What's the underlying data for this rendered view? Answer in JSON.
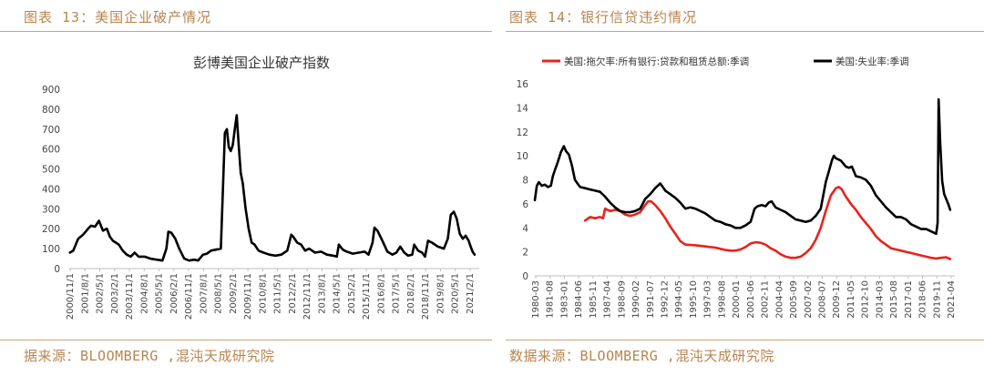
{
  "left": {
    "figure_title": "图表 13：美国企业破产情况",
    "source": "据来源：BLOOMBERG ,混沌天成研究院"
  },
  "right": {
    "figure_title": "图表 14：银行信贷违约情况",
    "source": "数据来源：BLOOMBERG ,混沌天成研究院"
  },
  "chart_data": [
    {
      "type": "line",
      "title": "彭博美国企业破产指数",
      "xlabel": "",
      "ylabel": "",
      "ylim": [
        0,
        900
      ],
      "yticks": [
        "900",
        "800",
        "700",
        "600",
        "500",
        "400",
        "300",
        "200",
        "100",
        "0"
      ],
      "x_tick_labels": [
        "2000/11/1",
        "2001/8/1",
        "2002/5/1",
        "2003/2/1",
        "2003/11/1",
        "2004/8/1",
        "2005/5/1",
        "2006/2/1",
        "2006/11/1",
        "2007/8/1",
        "2008/5/1",
        "2009/2/1",
        "2009/11/1",
        "2010/8/1",
        "2011/5/1",
        "2012/2/1",
        "2012/11/1",
        "2013/8/1",
        "2014/5/1",
        "2015/2/1",
        "2015/11/1",
        "2016/8/1",
        "2017/5/1",
        "2018/2/1",
        "2018/11/1",
        "2019/8/1",
        "2020/5/1",
        "2021/2/1"
      ],
      "grid": false,
      "colors": {
        "line": "#000000"
      },
      "series": [
        {
          "x": [
            2000.83,
            2001.0,
            2001.25,
            2001.5,
            2001.75,
            2001.9,
            2002.1,
            2002.3,
            2002.5,
            2002.7,
            2002.85,
            2003.0,
            2003.15,
            2003.3,
            2003.5,
            2003.7,
            2003.9,
            2004.1,
            2004.3,
            2004.6,
            2004.9,
            2005.2,
            2005.5,
            2005.7,
            2005.8,
            2005.95,
            2006.15,
            2006.35,
            2006.6,
            2006.85,
            2007.1,
            2007.3,
            2007.55,
            2007.75,
            2007.95,
            2008.2,
            2008.45,
            2008.65,
            2008.75,
            2008.85,
            2008.95,
            2009.05,
            2009.15,
            2009.25,
            2009.35,
            2009.45,
            2009.55,
            2009.7,
            2009.85,
            2010.0,
            2010.15,
            2010.35,
            2010.6,
            2010.9,
            2011.2,
            2011.5,
            2011.8,
            2012.0,
            2012.1,
            2012.3,
            2012.5,
            2012.7,
            2012.9,
            2013.2,
            2013.5,
            2013.8,
            2014.1,
            2014.3,
            2014.4,
            2014.6,
            2014.8,
            2015.1,
            2015.4,
            2015.7,
            2015.9,
            2016.1,
            2016.2,
            2016.35,
            2016.6,
            2016.85,
            2017.1,
            2017.3,
            2017.5,
            2017.7,
            2017.9,
            2018.1,
            2018.2,
            2018.4,
            2018.6,
            2018.75,
            2018.9,
            2019.1,
            2019.4,
            2019.7,
            2019.9,
            2020.05,
            2020.2,
            2020.35,
            2020.5,
            2020.65,
            2020.8,
            2020.95,
            2021.05,
            2021.15,
            2021.25
          ],
          "y": [
            80,
            90,
            150,
            170,
            200,
            215,
            210,
            240,
            190,
            200,
            160,
            140,
            130,
            120,
            90,
            70,
            60,
            80,
            60,
            60,
            50,
            45,
            40,
            100,
            185,
            180,
            150,
            100,
            50,
            40,
            45,
            40,
            70,
            75,
            90,
            95,
            100,
            680,
            700,
            610,
            590,
            620,
            700,
            770,
            620,
            480,
            430,
            300,
            200,
            130,
            120,
            90,
            80,
            70,
            65,
            70,
            90,
            170,
            160,
            130,
            120,
            90,
            100,
            80,
            85,
            70,
            65,
            60,
            120,
            95,
            85,
            75,
            80,
            85,
            70,
            130,
            205,
            190,
            140,
            85,
            70,
            80,
            110,
            80,
            65,
            70,
            120,
            90,
            80,
            60,
            140,
            130,
            110,
            100,
            150,
            270,
            285,
            250,
            175,
            150,
            165,
            140,
            110,
            85,
            70
          ]
        }
      ]
    },
    {
      "type": "line",
      "title": "",
      "xlabel": "",
      "ylabel": "",
      "ylim": [
        0,
        16
      ],
      "yticks": [
        "16",
        "14",
        "12",
        "10",
        "8",
        "6",
        "4",
        "2",
        "0"
      ],
      "x_tick_labels": [
        "1980-03",
        "1981-08",
        "1983-01",
        "1984-06",
        "1985-11",
        "1987-04",
        "1988-09",
        "1990-02",
        "1991-07",
        "1992-12",
        "1994-05",
        "1995-10",
        "1997-03",
        "1998-08",
        "2000-01",
        "2001-06",
        "2002-11",
        "2004-04",
        "2005-09",
        "2007-02",
        "2008-07",
        "2009-12",
        "2011-05",
        "2012-10",
        "2014-03",
        "2015-08",
        "2017-01",
        "2018-06",
        "2019-11",
        "2021-04"
      ],
      "grid": false,
      "legend_position": "top",
      "series": [
        {
          "name": "美国:拖欠率:所有银行:贷款和租赁总额:季调",
          "color": "#e8231c",
          "x": [
            1985.0,
            1985.5,
            1986.0,
            1986.5,
            1986.8,
            1987.0,
            1987.5,
            1988.0,
            1988.5,
            1989.0,
            1989.5,
            1990.0,
            1990.5,
            1991.0,
            1991.3,
            1991.6,
            1992.0,
            1992.5,
            1993.0,
            1993.5,
            1994.0,
            1994.5,
            1995.0,
            1996.0,
            1997.0,
            1998.0,
            1998.5,
            1999.0,
            1999.5,
            2000.0,
            2000.5,
            2001.0,
            2001.5,
            2002.0,
            2002.5,
            2003.0,
            2003.5,
            2004.0,
            2004.5,
            2005.0,
            2005.5,
            2006.0,
            2006.5,
            2007.0,
            2007.5,
            2008.0,
            2008.5,
            2009.0,
            2009.5,
            2010.0,
            2010.3,
            2010.6,
            2011.0,
            2011.5,
            2012.0,
            2012.5,
            2013.0,
            2013.5,
            2014.0,
            2014.5,
            2015.0,
            2015.5,
            2016.0,
            2016.5,
            2017.0,
            2017.5,
            2018.0,
            2018.5,
            2019.0,
            2019.5,
            2020.0,
            2020.5,
            2021.0,
            2021.4
          ],
          "y": [
            4.6,
            4.9,
            4.8,
            4.9,
            4.8,
            5.6,
            5.4,
            5.5,
            5.4,
            5.1,
            5.0,
            5.1,
            5.3,
            5.9,
            6.2,
            6.2,
            5.9,
            5.4,
            4.8,
            4.1,
            3.5,
            2.9,
            2.6,
            2.55,
            2.45,
            2.35,
            2.25,
            2.15,
            2.1,
            2.1,
            2.2,
            2.4,
            2.7,
            2.8,
            2.75,
            2.6,
            2.3,
            2.1,
            1.8,
            1.6,
            1.5,
            1.5,
            1.6,
            1.9,
            2.3,
            3.0,
            4.0,
            5.4,
            6.7,
            7.3,
            7.4,
            7.2,
            6.6,
            6.0,
            5.5,
            4.9,
            4.4,
            3.9,
            3.3,
            2.9,
            2.6,
            2.3,
            2.2,
            2.1,
            2.0,
            1.9,
            1.8,
            1.7,
            1.6,
            1.5,
            1.45,
            1.5,
            1.55,
            1.4
          ]
        },
        {
          "name": "美国:失业率:季调",
          "color": "#000000",
          "x": [
            1980.0,
            1980.2,
            1980.4,
            1980.7,
            1981.0,
            1981.3,
            1981.6,
            1981.8,
            1982.0,
            1982.3,
            1982.6,
            1982.9,
            1983.1,
            1983.4,
            1983.7,
            1984.0,
            1984.5,
            1985.0,
            1985.5,
            1986.0,
            1986.5,
            1987.0,
            1987.5,
            1988.0,
            1988.5,
            1989.0,
            1989.5,
            1990.0,
            1990.5,
            1991.0,
            1991.5,
            1992.0,
            1992.5,
            1993.0,
            1993.5,
            1994.0,
            1994.5,
            1995.0,
            1995.5,
            1996.0,
            1996.5,
            1997.0,
            1997.5,
            1998.0,
            1998.5,
            1999.0,
            1999.5,
            2000.0,
            2000.5,
            2001.0,
            2001.5,
            2001.9,
            2002.2,
            2002.6,
            2003.0,
            2003.3,
            2003.6,
            2004.0,
            2004.5,
            2005.0,
            2005.5,
            2006.0,
            2006.5,
            2007.0,
            2007.5,
            2008.0,
            2008.5,
            2009.0,
            2009.3,
            2009.6,
            2009.8,
            2010.0,
            2010.5,
            2011.0,
            2011.3,
            2011.6,
            2012.0,
            2012.5,
            2013.0,
            2013.5,
            2014.0,
            2014.5,
            2015.0,
            2015.5,
            2016.0,
            2016.5,
            2017.0,
            2017.5,
            2018.0,
            2018.5,
            2019.0,
            2019.5,
            2020.0,
            2020.15,
            2020.25,
            2020.4,
            2020.6,
            2020.8,
            2021.0,
            2021.2,
            2021.4
          ],
          "y": [
            6.3,
            7.5,
            7.8,
            7.5,
            7.6,
            7.4,
            7.5,
            8.3,
            8.8,
            9.5,
            10.3,
            10.8,
            10.4,
            10.1,
            9.2,
            8.0,
            7.4,
            7.3,
            7.2,
            7.1,
            7.0,
            6.6,
            6.1,
            5.7,
            5.4,
            5.3,
            5.3,
            5.4,
            5.6,
            6.4,
            6.8,
            7.3,
            7.7,
            7.1,
            6.8,
            6.5,
            6.1,
            5.6,
            5.7,
            5.6,
            5.4,
            5.2,
            4.9,
            4.6,
            4.5,
            4.3,
            4.2,
            4.0,
            4.0,
            4.2,
            4.5,
            5.6,
            5.8,
            5.9,
            5.8,
            6.1,
            6.2,
            5.7,
            5.5,
            5.3,
            5.0,
            4.7,
            4.6,
            4.5,
            4.6,
            5.0,
            5.6,
            7.8,
            8.7,
            9.6,
            10.0,
            9.8,
            9.6,
            9.1,
            9.0,
            9.1,
            8.3,
            8.2,
            8.0,
            7.5,
            6.7,
            6.2,
            5.7,
            5.3,
            4.9,
            4.9,
            4.7,
            4.3,
            4.1,
            3.9,
            3.9,
            3.7,
            3.5,
            4.4,
            14.7,
            11.1,
            7.9,
            6.8,
            6.4,
            6.0,
            5.5
          ]
        }
      ]
    }
  ]
}
